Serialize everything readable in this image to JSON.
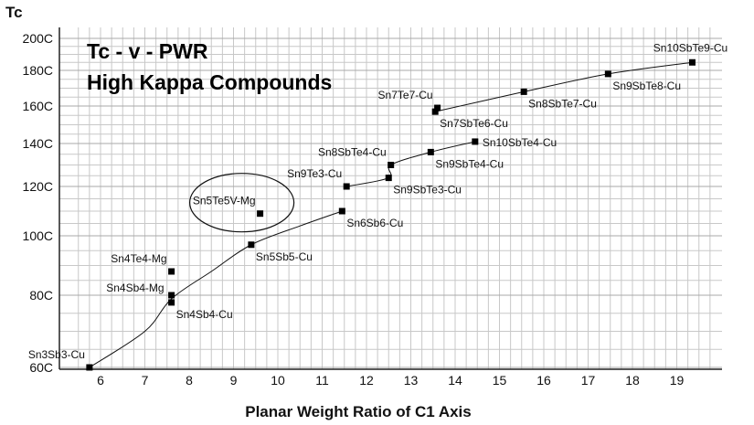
{
  "chart_data": {
    "type": "scatter",
    "title": "Tc - v - PWR",
    "subtitle": "High Kappa Compounds",
    "xlabel": "Planar Weight Ratio of C1 Axis",
    "ylabel": "Tc",
    "y_scale": "nonlinear (compressed toward low Tc)",
    "x_ticks": [
      "6",
      "7",
      "8",
      "9",
      "10",
      "11",
      "12",
      "13",
      "14",
      "15",
      "16",
      "17",
      "18",
      "19"
    ],
    "y_ticks": [
      {
        "value": 60,
        "label": "60C"
      },
      {
        "value": 80,
        "label": "80C"
      },
      {
        "value": 100,
        "label": "100C"
      },
      {
        "value": 120,
        "label": "120C"
      },
      {
        "value": 140,
        "label": "140C"
      },
      {
        "value": 160,
        "label": "160C"
      },
      {
        "value": 180,
        "label": "180C"
      },
      {
        "value": 200,
        "label": "200C"
      }
    ],
    "xlim": [
      5.3,
      19.8
    ],
    "ylim": [
      60,
      200
    ],
    "grid": true,
    "points": [
      {
        "label": "Sn3Sb3-Cu",
        "x": 5.75,
        "y": 60,
        "anchor": "above-left"
      },
      {
        "label": "Sn4Sb4-Cu",
        "x": 7.6,
        "y": 78,
        "anchor": "below-right"
      },
      {
        "label": "Sn4Sb4-Mg",
        "x": 7.6,
        "y": 80,
        "anchor": "left"
      },
      {
        "label": "Sn4Te4-Mg",
        "x": 7.6,
        "y": 88,
        "anchor": "above-left"
      },
      {
        "label": "Sn5Sb5-Cu",
        "x": 9.4,
        "y": 97,
        "anchor": "below-right"
      },
      {
        "label": "Sn5Te5V-Mg",
        "x": 9.6,
        "y": 109,
        "anchor": "above-left"
      },
      {
        "label": "Sn6Sb6-Cu",
        "x": 11.45,
        "y": 110,
        "anchor": "below-right"
      },
      {
        "label": "Sn9Te3-Cu",
        "x": 11.55,
        "y": 120,
        "anchor": "above-left"
      },
      {
        "label": "Sn9SbTe3-Cu",
        "x": 12.5,
        "y": 124,
        "anchor": "below-right"
      },
      {
        "label": "Sn8SbTe4-Cu",
        "x": 12.55,
        "y": 130,
        "anchor": "above-left"
      },
      {
        "label": "Sn9SbTe4-Cu",
        "x": 13.45,
        "y": 136,
        "anchor": "below-right"
      },
      {
        "label": "Sn10SbTe4-Cu",
        "x": 14.45,
        "y": 141,
        "anchor": "right"
      },
      {
        "label": "Sn7SbTe6-Cu",
        "x": 13.55,
        "y": 157,
        "anchor": "below-right"
      },
      {
        "label": "Sn7Te7-Cu",
        "x": 13.6,
        "y": 159,
        "anchor": "above-left"
      },
      {
        "label": "Sn8SbTe7-Cu",
        "x": 15.55,
        "y": 168,
        "anchor": "below-right"
      },
      {
        "label": "Sn9SbTe8-Cu",
        "x": 17.45,
        "y": 178,
        "anchor": "below-right"
      },
      {
        "label": "Sn10SbTe9-Cu",
        "x": 19.35,
        "y": 185,
        "anchor": "above"
      }
    ],
    "series": [
      {
        "points": [
          [
            5.75,
            60
          ],
          [
            7.0,
            70
          ],
          [
            7.6,
            79
          ],
          [
            8.5,
            88
          ],
          [
            9.4,
            97
          ],
          [
            10.5,
            104
          ],
          [
            11.45,
            110
          ]
        ]
      },
      {
        "points": [
          [
            11.55,
            120
          ],
          [
            12.5,
            124
          ],
          [
            12.55,
            130
          ],
          [
            13.45,
            136
          ],
          [
            14.45,
            141
          ]
        ]
      },
      {
        "points": [
          [
            13.55,
            157
          ],
          [
            15.55,
            168
          ],
          [
            17.45,
            178
          ],
          [
            19.35,
            185
          ]
        ]
      }
    ],
    "highlight": {
      "label": "Sn5Te5V-Mg",
      "shape": "ellipse"
    }
  }
}
